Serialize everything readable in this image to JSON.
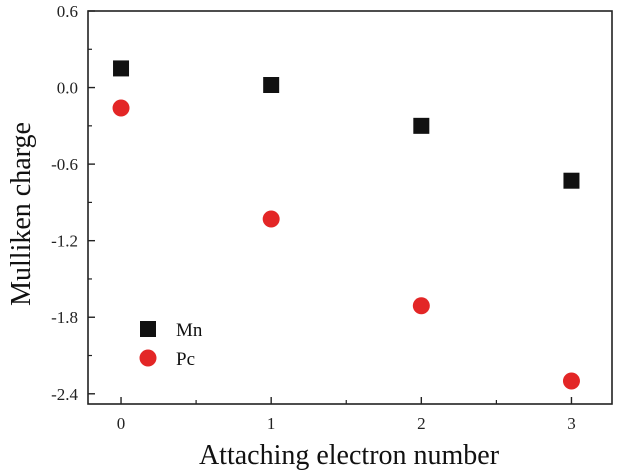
{
  "chart_data": {
    "type": "scatter",
    "xlabel": "Attaching electron number",
    "ylabel": "Mulliken charge",
    "xlim": [
      -0.22,
      3.27
    ],
    "ylim": [
      -2.48,
      0.6
    ],
    "x_ticks": [
      0,
      1,
      2,
      3
    ],
    "x_tick_labels": [
      "0",
      "1",
      "2",
      "3"
    ],
    "y_ticks": [
      0.6,
      0.0,
      -0.6,
      -1.2,
      -1.8,
      -2.4
    ],
    "y_tick_labels": [
      "0.6",
      "0.0",
      "-0.6",
      "-1.2",
      "-1.8",
      "-2.4"
    ],
    "grid": false,
    "legend_position": "bottom-left",
    "series": [
      {
        "name": "Mn",
        "marker": "square",
        "color": "#111111",
        "x": [
          0,
          1,
          2,
          3
        ],
        "y": [
          0.15,
          0.02,
          -0.3,
          -0.73
        ]
      },
      {
        "name": "Pc",
        "marker": "circle",
        "color": "#e32626",
        "x": [
          0,
          1,
          2,
          3
        ],
        "y": [
          -0.16,
          -1.03,
          -1.71,
          -2.3
        ]
      }
    ]
  }
}
